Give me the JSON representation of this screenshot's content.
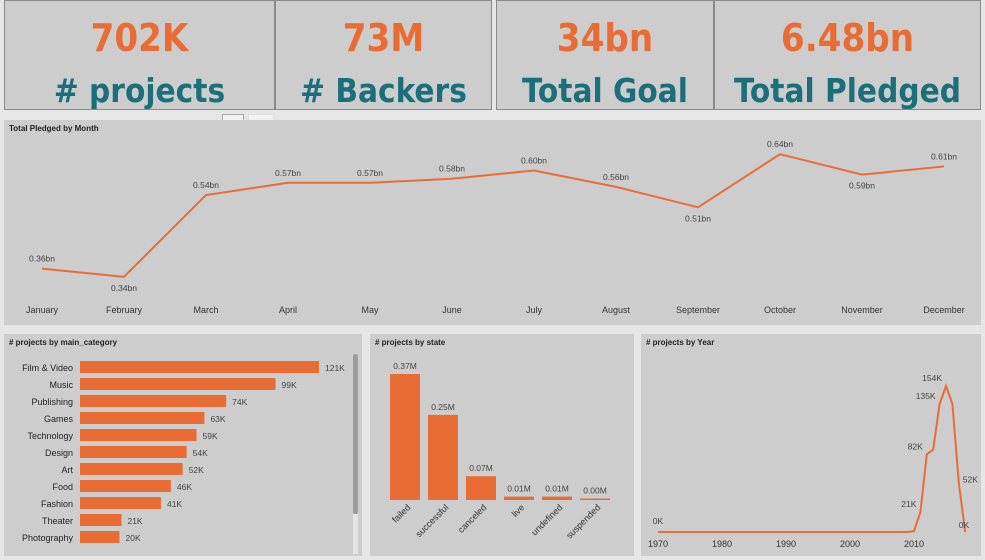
{
  "kpis": [
    {
      "value": "702K",
      "label": "# projects"
    },
    {
      "value": "73M",
      "label": "# Backers"
    },
    {
      "value": "34bn",
      "label": "Total Goal"
    },
    {
      "value": "6.48bn",
      "label": "Total Pledged"
    }
  ],
  "colors": {
    "accent": "#ea6c35",
    "kpi_label": "#1b6f7a",
    "panel_bg": "#cdcdcd"
  },
  "chart_data": [
    {
      "type": "line",
      "title": "Total Pledged by Month",
      "categories": [
        "January",
        "February",
        "March",
        "April",
        "May",
        "June",
        "July",
        "August",
        "September",
        "October",
        "November",
        "December"
      ],
      "values": [
        0.36,
        0.34,
        0.54,
        0.57,
        0.57,
        0.58,
        0.6,
        0.56,
        0.51,
        0.64,
        0.59,
        0.61
      ],
      "labels": [
        "0.36bn",
        "0.34bn",
        "0.54bn",
        "0.57bn",
        "0.57bn",
        "0.58bn",
        "0.60bn",
        "0.56bn",
        "0.51bn",
        "0.64bn",
        "0.59bn",
        "0.61bn"
      ],
      "unit": "bn"
    },
    {
      "type": "bar",
      "orientation": "horizontal",
      "title": "# projects by main_category",
      "categories": [
        "Film & Video",
        "Music",
        "Publishing",
        "Games",
        "Technology",
        "Design",
        "Art",
        "Food",
        "Fashion",
        "Theater",
        "Photography"
      ],
      "values": [
        121,
        99,
        74,
        63,
        59,
        54,
        52,
        46,
        41,
        21,
        20
      ],
      "labels": [
        "121K",
        "99K",
        "74K",
        "63K",
        "59K",
        "54K",
        "52K",
        "46K",
        "41K",
        "21K",
        "20K"
      ],
      "unit": "K"
    },
    {
      "type": "bar",
      "title": "# projects by state",
      "categories": [
        "failed",
        "successful",
        "canceled",
        "live",
        "undefined",
        "suspended"
      ],
      "values": [
        0.37,
        0.25,
        0.07,
        0.01,
        0.01,
        0.0
      ],
      "labels": [
        "0.37M",
        "0.25M",
        "0.07M",
        "0.01M",
        "0.01M",
        "0.00M"
      ],
      "unit": "M"
    },
    {
      "type": "line",
      "title": "# projects by Year",
      "x": [
        1970,
        2009,
        2010,
        2011,
        2012,
        2013,
        2014,
        2015,
        2016,
        2017,
        2018
      ],
      "values": [
        0,
        0,
        1,
        21,
        82,
        87,
        135,
        154,
        135,
        52,
        0
      ],
      "point_labels": [
        {
          "x": 1970,
          "label": "0K"
        },
        {
          "x": 2011,
          "label": "21K"
        },
        {
          "x": 2012,
          "label": "82K"
        },
        {
          "x": 2014,
          "label": "135K"
        },
        {
          "x": 2015,
          "label": "154K"
        },
        {
          "x": 2017,
          "label": "52K"
        },
        {
          "x": 2018,
          "label": "0K"
        }
      ],
      "xticks": [
        "1970",
        "1980",
        "1990",
        "2000",
        "2010"
      ],
      "xlim": [
        1970,
        2019
      ]
    }
  ]
}
